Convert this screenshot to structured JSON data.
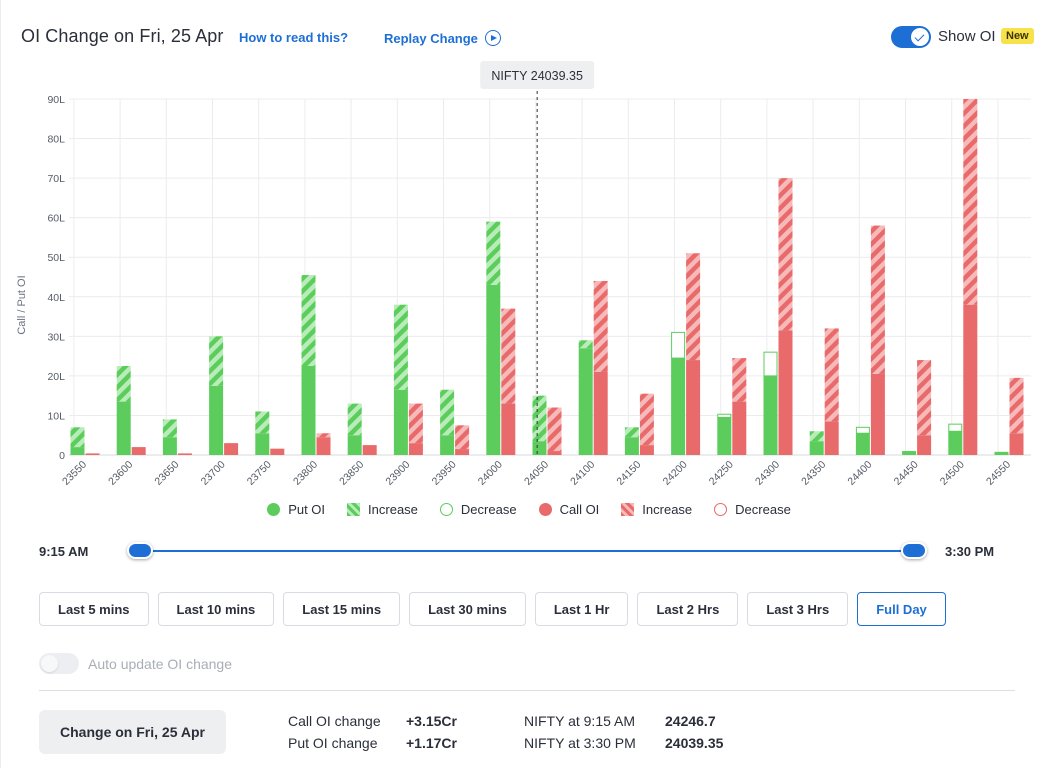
{
  "header": {
    "title": "OI Change on Fri, 25 Apr",
    "how_to_read": "How to read this?",
    "replay": "Replay Change",
    "show_oi_label": "Show OI",
    "show_oi_on": true,
    "new_badge": "New"
  },
  "chart_data": {
    "type": "bar",
    "ylabel": "Call / Put OI",
    "ylim": [
      0,
      90
    ],
    "yticks": [
      "0",
      "10L",
      "20L",
      "30L",
      "40L",
      "50L",
      "60L",
      "70L",
      "80L",
      "90L"
    ],
    "categories": [
      "23550",
      "23600",
      "23650",
      "23700",
      "23750",
      "23800",
      "23850",
      "23900",
      "23950",
      "24000",
      "24050",
      "24100",
      "24150",
      "24200",
      "24250",
      "24300",
      "24350",
      "24400",
      "24450",
      "24500",
      "24550"
    ],
    "put_oi": [
      2,
      13.5,
      4.5,
      17.5,
      5.5,
      22.5,
      5,
      16.5,
      5,
      43,
      3.5,
      27,
      4.5,
      24.5,
      9.5,
      20,
      3.5,
      5.5,
      1,
      6,
      0.8
    ],
    "put_increase": [
      5,
      9,
      4.5,
      12.5,
      5.5,
      23,
      8,
      21.5,
      11.5,
      16,
      11.5,
      2,
      2.5,
      0,
      0,
      0,
      2.5,
      0,
      0,
      0,
      0
    ],
    "put_decrease": [
      0,
      0,
      0,
      0,
      0,
      0,
      0,
      0,
      0,
      0,
      0,
      0,
      0,
      6.5,
      0.8,
      6,
      0,
      1.5,
      0,
      1.8,
      0
    ],
    "call_oi": [
      0.4,
      2,
      0.4,
      3,
      1.6,
      4.5,
      2.5,
      3,
      1.5,
      13,
      1,
      21,
      2.5,
      24,
      13.5,
      31.5,
      8.5,
      20.5,
      5,
      38,
      5.5
    ],
    "call_increase": [
      0,
      0,
      0,
      0,
      0,
      1,
      0,
      10,
      6,
      24,
      11,
      23,
      13,
      27,
      11,
      38.5,
      23.5,
      37.5,
      19,
      52,
      14
    ],
    "call_decrease": [
      0,
      0,
      0,
      0,
      0,
      0,
      0,
      0,
      0,
      0,
      0,
      0,
      0,
      0,
      0,
      0,
      0,
      0,
      0,
      0,
      0
    ],
    "spot_label": "NIFTY 24039.35",
    "spot": 24039.35,
    "legend": [
      "Put OI",
      "Increase",
      "Decrease",
      "Call OI",
      "Increase",
      "Decrease"
    ],
    "legend_placement": "bottom-center",
    "grid": true,
    "colors": {
      "put": "#5ccd5c",
      "put_light": "#b8ecb8",
      "call": "#e96a6a",
      "call_light": "#f6baba"
    }
  },
  "slider": {
    "start": "9:15 AM",
    "end": "3:30 PM"
  },
  "ranges": [
    "Last 5 mins",
    "Last 10 mins",
    "Last 15 mins",
    "Last 30 mins",
    "Last 1 Hr",
    "Last 2 Hrs",
    "Last 3 Hrs",
    "Full Day"
  ],
  "active_range": "Full Day",
  "auto_update": {
    "label": "Auto update OI change",
    "on": false
  },
  "footer": {
    "date_button": "Change on Fri, 25 Apr",
    "call_oi_change_label": "Call OI change",
    "call_oi_change": "+3.15Cr",
    "put_oi_change_label": "Put OI change",
    "put_oi_change": "+1.17Cr",
    "nifty_start_label": "NIFTY at 9:15 AM",
    "nifty_start": "24246.7",
    "nifty_end_label": "NIFTY at 3:30 PM",
    "nifty_end": "24039.35"
  }
}
